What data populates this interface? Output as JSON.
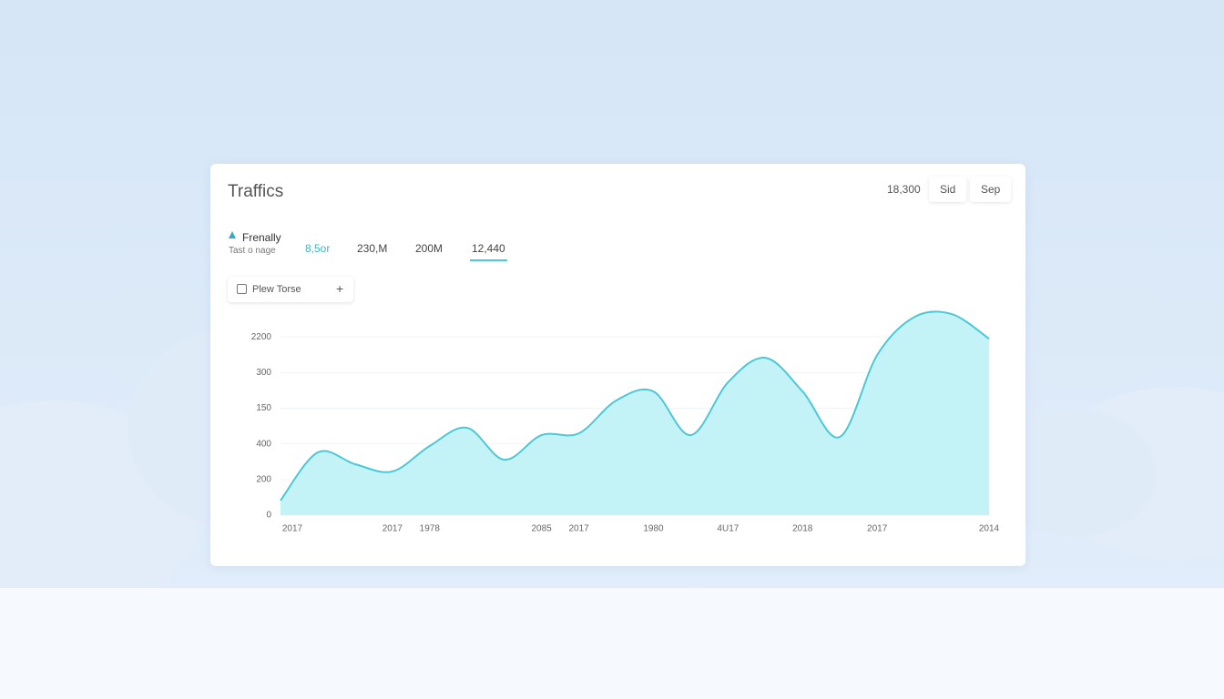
{
  "header": {
    "title": "Traffics",
    "controls": [
      "18,300",
      "Sid",
      "Sep"
    ]
  },
  "legend": {
    "label": "Frenally",
    "sublabel": "Tast o nage"
  },
  "stats": [
    "8,5or",
    "230,M",
    "200M",
    "12,440"
  ],
  "filter": {
    "label": "Plew Torse",
    "action": "+"
  },
  "chart_data": {
    "type": "area",
    "color": "#4cc8d6",
    "fill": "#c4f3f7",
    "grid": true,
    "categories": [
      "2017",
      null,
      null,
      "2017",
      "1978",
      null,
      null,
      "2085",
      "2017",
      null,
      "1980",
      null,
      "4U17",
      null,
      "2018",
      null,
      "2017",
      null,
      null,
      "2014"
    ],
    "values": [
      82,
      352,
      286,
      245,
      388,
      490,
      311,
      449,
      459,
      643,
      694,
      449,
      745,
      883,
      694,
      439,
      898,
      1112,
      1128,
      990
    ],
    "ylim": [
      0,
      1200
    ],
    "yticks": [
      0,
      200,
      400,
      {
        "value": 600,
        "label": "150"
      },
      {
        "value": 800,
        "label": "300"
      },
      {
        "value": 1000,
        "label": "2200"
      }
    ]
  }
}
